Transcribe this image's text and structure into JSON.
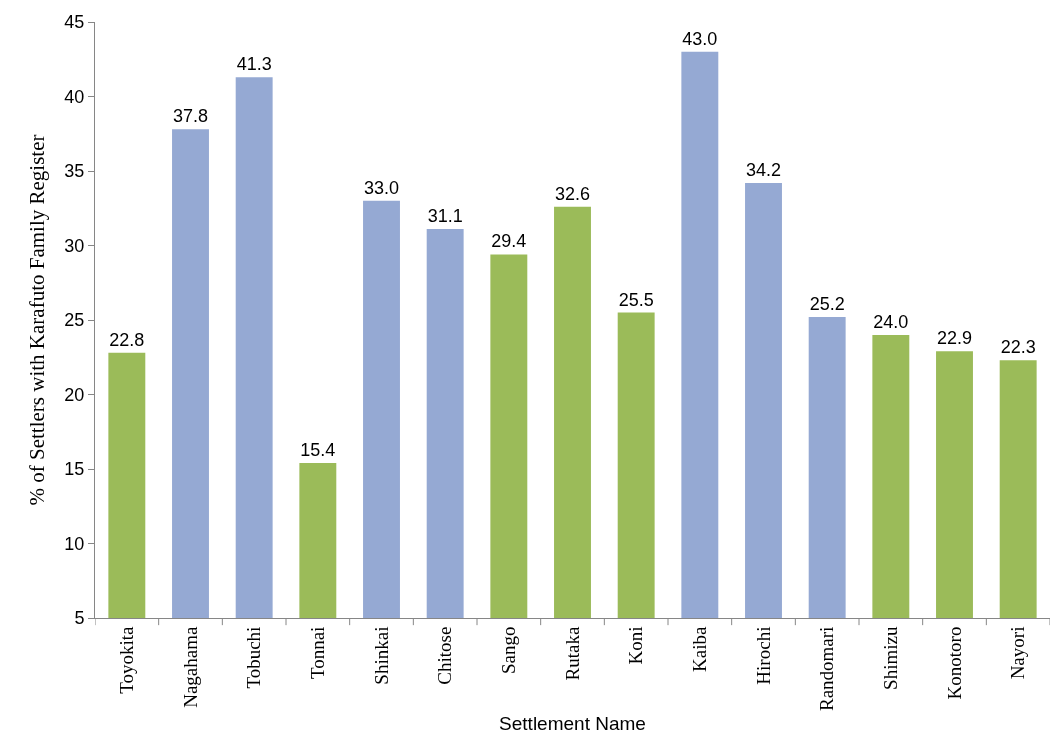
{
  "chart_data": {
    "type": "bar",
    "xlabel": "Settlement Name",
    "ylabel": "% of Settlers with Karafuto Family Register",
    "categories": [
      "Toyokita",
      "Nagahama",
      "Tobuchi",
      "Tonnai",
      "Shinkai",
      "Chitose",
      "Sango",
      "Rutaka",
      "Koni",
      "Kaiba",
      "Hirochi",
      "Randomari",
      "Shimizu",
      "Konotoro",
      "Nayori"
    ],
    "values": [
      22.8,
      37.8,
      41.3,
      15.4,
      33.0,
      31.1,
      29.4,
      32.6,
      25.5,
      43.0,
      34.2,
      25.2,
      24.0,
      22.9,
      22.3
    ],
    "colors": [
      "#9bbb59",
      "#95a9d3",
      "#95a9d3",
      "#9bbb59",
      "#95a9d3",
      "#95a9d3",
      "#9bbb59",
      "#9bbb59",
      "#9bbb59",
      "#95a9d3",
      "#95a9d3",
      "#95a9d3",
      "#9bbb59",
      "#9bbb59",
      "#9bbb59"
    ],
    "value_labels": [
      "22.8",
      "37.8",
      "41.3",
      "15.4",
      "33.0",
      "31.1",
      "29.4",
      "32.6",
      "25.5",
      "43.0",
      "34.2",
      "25.2",
      "24.0",
      "22.9",
      "22.3"
    ],
    "ylim": [
      5,
      45
    ],
    "yticks": [
      5,
      10,
      15,
      20,
      25,
      30,
      35,
      40,
      45
    ],
    "legend": false
  }
}
